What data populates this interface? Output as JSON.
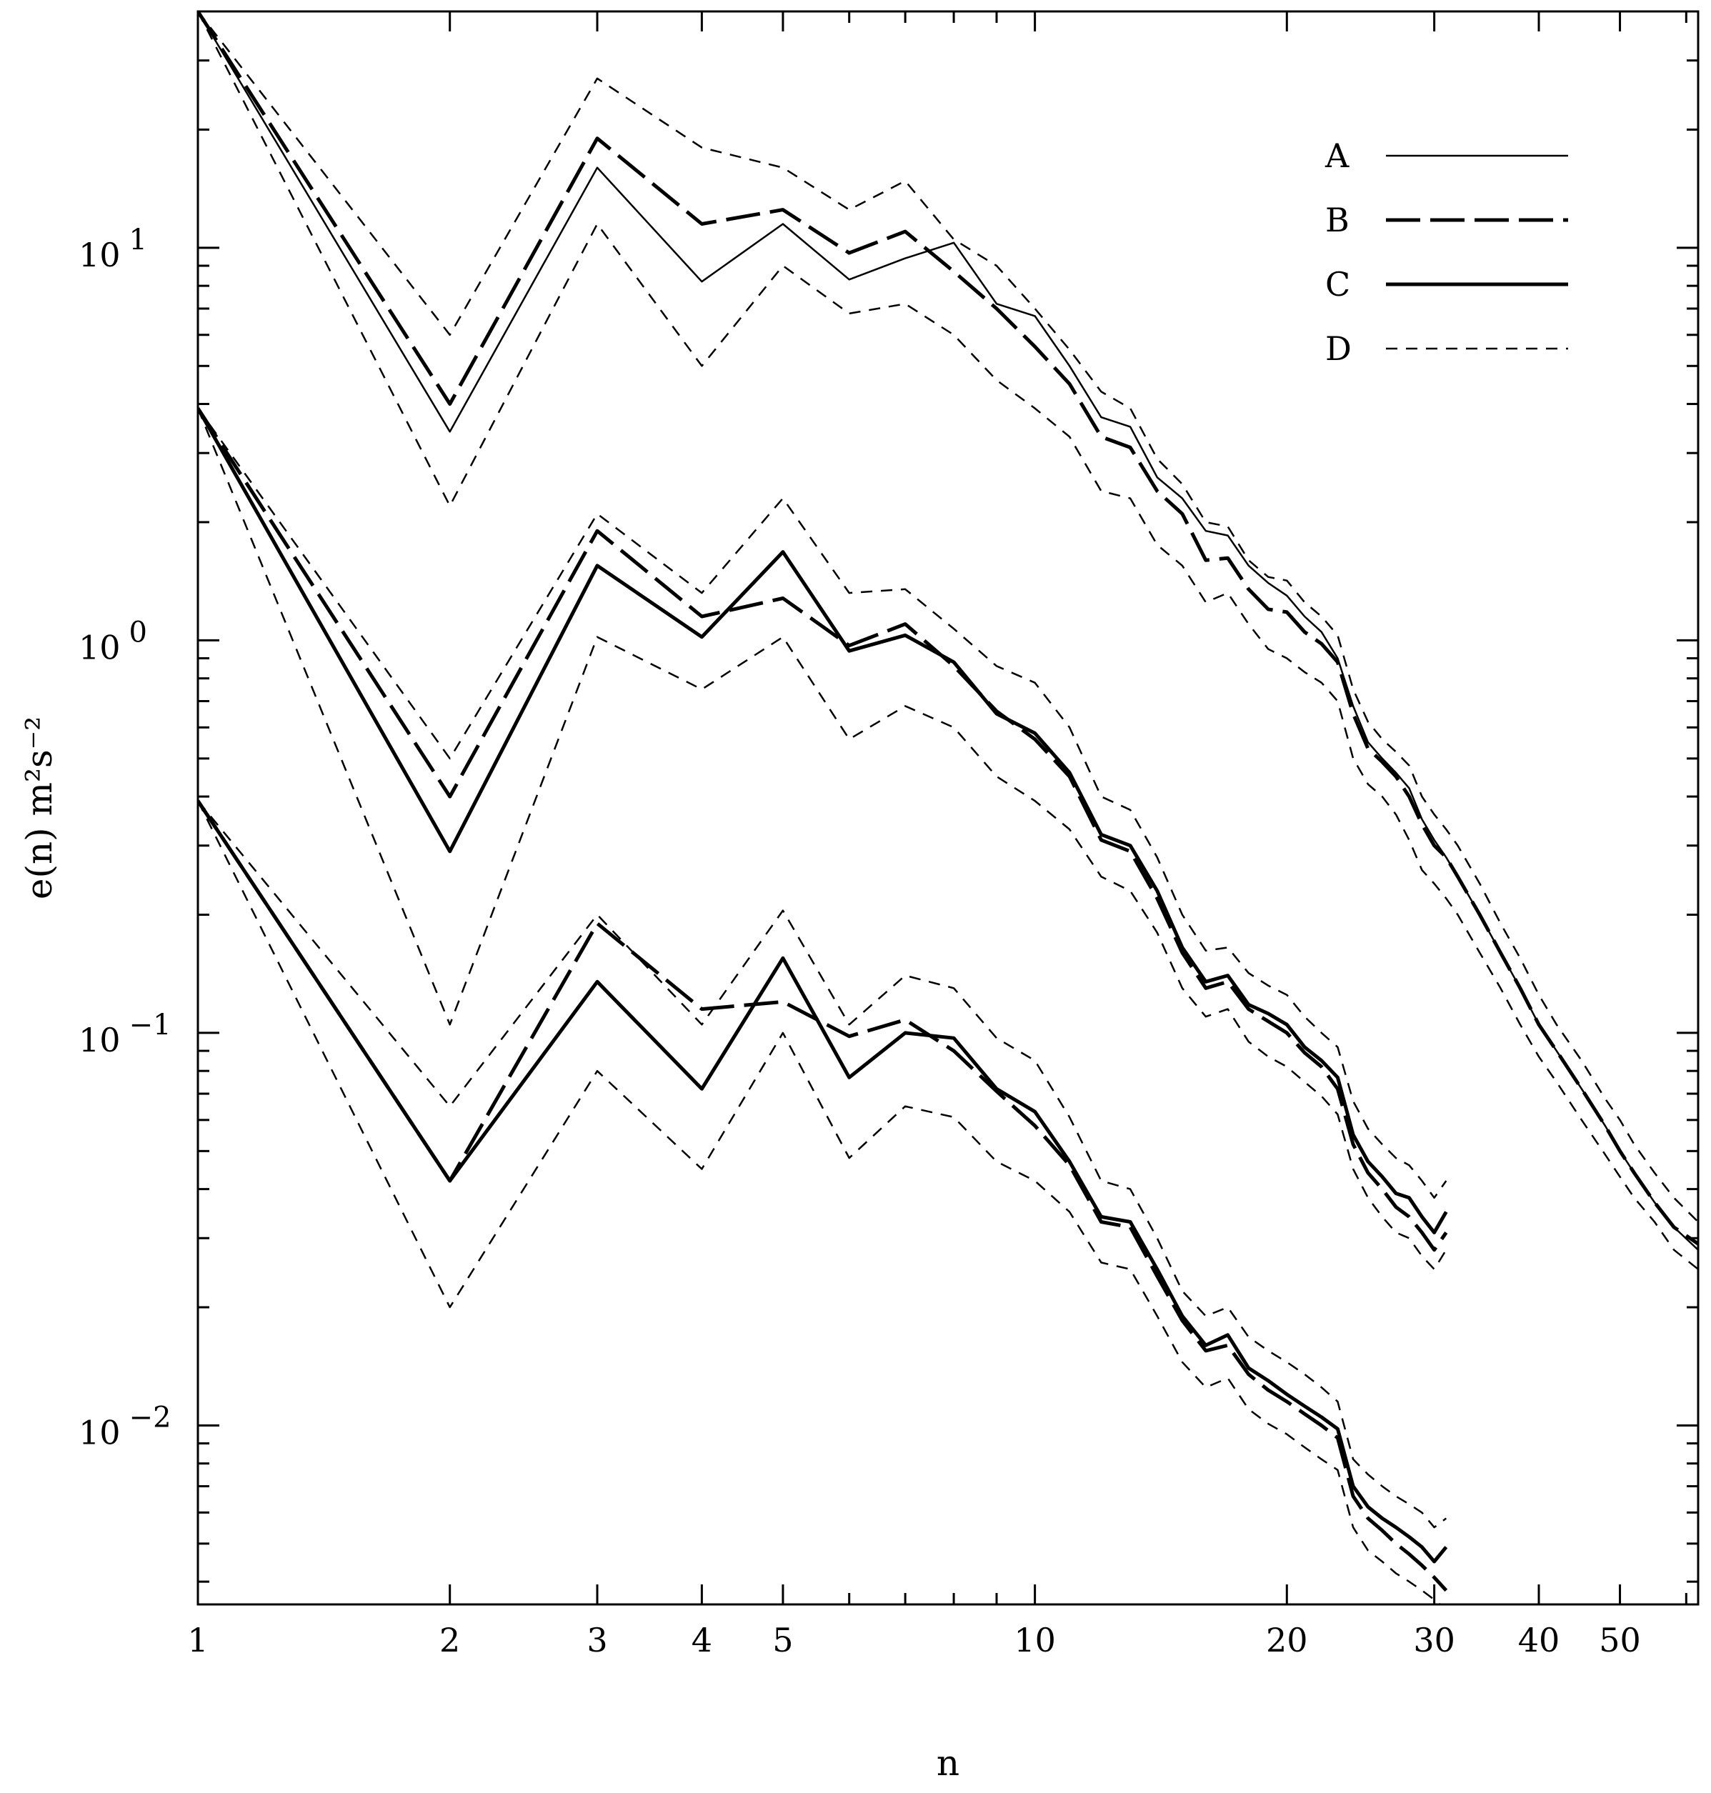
{
  "chart_data": {
    "type": "line",
    "title": "",
    "xlabel": "n",
    "ylabel": "e(n) m²s⁻²",
    "xscale": "log",
    "yscale": "log",
    "xlim": [
      1,
      62
    ],
    "ylim": [
      0.0035,
      40
    ],
    "grid": false,
    "legend_position": "top-right",
    "x_ticks": [
      {
        "value": 1,
        "label": "1"
      },
      {
        "value": 2,
        "label": "2"
      },
      {
        "value": 3,
        "label": "3"
      },
      {
        "value": 4,
        "label": "4"
      },
      {
        "value": 5,
        "label": "5"
      },
      {
        "value": 10,
        "label": "10"
      },
      {
        "value": 20,
        "label": "20"
      },
      {
        "value": 30,
        "label": "30"
      },
      {
        "value": 40,
        "label": "40"
      },
      {
        "value": 50,
        "label": "50"
      }
    ],
    "y_ticks": [
      {
        "value": 10,
        "base": "10",
        "exp": "1"
      },
      {
        "value": 1,
        "base": "10",
        "exp": "0"
      },
      {
        "value": 0.1,
        "base": "10",
        "exp": "−1"
      },
      {
        "value": 0.01,
        "base": "10",
        "exp": "−2"
      }
    ],
    "legend": [
      {
        "key": "A",
        "label": "A",
        "style": "thin-solid"
      },
      {
        "key": "B",
        "label": "B",
        "style": "long-dash"
      },
      {
        "key": "C",
        "label": "C",
        "style": "thick-solid"
      },
      {
        "key": "D",
        "label": "D",
        "style": "short-dash"
      }
    ],
    "series": [
      {
        "group": "upper",
        "style": "A",
        "x": [
          1,
          2,
          3,
          4,
          5,
          6,
          7,
          8,
          9,
          10,
          11,
          12,
          13,
          14,
          15,
          16,
          17,
          18,
          19,
          20,
          21,
          22,
          23,
          24,
          25,
          26,
          27,
          28,
          29,
          30,
          31,
          32,
          34,
          36,
          38,
          40,
          42,
          45,
          48,
          50,
          52,
          55,
          58,
          62
        ],
        "y": [
          40,
          3.4,
          16.0,
          8.2,
          11.5,
          8.3,
          9.4,
          10.3,
          7.2,
          6.7,
          5.0,
          3.7,
          3.5,
          2.6,
          2.3,
          1.9,
          1.85,
          1.55,
          1.4,
          1.3,
          1.15,
          1.05,
          0.9,
          0.68,
          0.55,
          0.5,
          0.46,
          0.42,
          0.35,
          0.31,
          0.28,
          0.25,
          0.2,
          0.16,
          0.13,
          0.105,
          0.09,
          0.072,
          0.058,
          0.05,
          0.044,
          0.037,
          0.032,
          0.028
        ]
      },
      {
        "group": "upper",
        "style": "B",
        "x": [
          1,
          2,
          3,
          4,
          5,
          6,
          7,
          8,
          9,
          10,
          11,
          12,
          13,
          14,
          15,
          16,
          17,
          18,
          19,
          20,
          21,
          22,
          23,
          24,
          25,
          26,
          27,
          28,
          29,
          30,
          31,
          32,
          34,
          36,
          38,
          40,
          42,
          45,
          48,
          50,
          52,
          55,
          58,
          62
        ],
        "y": [
          40,
          4.0,
          19.0,
          11.5,
          12.5,
          9.7,
          11.0,
          8.7,
          7.0,
          5.6,
          4.5,
          3.3,
          3.1,
          2.4,
          2.1,
          1.6,
          1.62,
          1.35,
          1.2,
          1.18,
          1.05,
          0.98,
          0.88,
          0.65,
          0.53,
          0.49,
          0.45,
          0.4,
          0.34,
          0.3,
          0.28,
          0.25,
          0.2,
          0.16,
          0.13,
          0.105,
          0.09,
          0.072,
          0.058,
          0.05,
          0.044,
          0.037,
          0.032,
          0.029
        ]
      },
      {
        "group": "upper",
        "style": "D-upper",
        "x": [
          1,
          2,
          3,
          4,
          5,
          6,
          7,
          8,
          9,
          10,
          11,
          12,
          13,
          14,
          15,
          16,
          17,
          18,
          19,
          20,
          21,
          22,
          23,
          24,
          25,
          26,
          27,
          28,
          29,
          30,
          31,
          32,
          34,
          36,
          38,
          40,
          42,
          45,
          48,
          50,
          52,
          55,
          58,
          62
        ],
        "y": [
          40,
          6.0,
          27.0,
          18.0,
          16.0,
          12.5,
          14.8,
          10.5,
          9.0,
          7.0,
          5.5,
          4.3,
          3.9,
          2.9,
          2.5,
          2.0,
          1.95,
          1.6,
          1.45,
          1.42,
          1.25,
          1.15,
          1.03,
          0.75,
          0.62,
          0.56,
          0.52,
          0.48,
          0.4,
          0.36,
          0.33,
          0.3,
          0.24,
          0.19,
          0.155,
          0.125,
          0.105,
          0.085,
          0.068,
          0.06,
          0.052,
          0.044,
          0.038,
          0.033
        ]
      },
      {
        "group": "upper",
        "style": "D-lower",
        "x": [
          1,
          2,
          3,
          4,
          5,
          6,
          7,
          8,
          9,
          10,
          11,
          12,
          13,
          14,
          15,
          16,
          17,
          18,
          19,
          20,
          21,
          22,
          23,
          24,
          25,
          26,
          27,
          28,
          29,
          30,
          31,
          32,
          34,
          36,
          38,
          40,
          42,
          45,
          48,
          50,
          52,
          55,
          58,
          62
        ],
        "y": [
          40,
          2.2,
          11.5,
          5.0,
          9.0,
          6.8,
          7.2,
          6.0,
          4.6,
          3.9,
          3.3,
          2.4,
          2.3,
          1.75,
          1.55,
          1.25,
          1.32,
          1.1,
          0.95,
          0.9,
          0.83,
          0.78,
          0.7,
          0.5,
          0.43,
          0.4,
          0.36,
          0.31,
          0.26,
          0.24,
          0.22,
          0.2,
          0.16,
          0.13,
          0.105,
          0.087,
          0.075,
          0.06,
          0.049,
          0.043,
          0.038,
          0.033,
          0.028,
          0.025
        ]
      },
      {
        "group": "middle",
        "style": "C",
        "x": [
          1,
          2,
          3,
          4,
          5,
          6,
          7,
          8,
          9,
          10,
          11,
          12,
          13,
          14,
          15,
          16,
          17,
          18,
          19,
          20,
          21,
          22,
          23,
          24,
          25,
          26,
          27,
          28,
          29,
          30,
          31
        ],
        "y": [
          3.9,
          0.29,
          1.55,
          1.02,
          1.68,
          0.94,
          1.03,
          0.88,
          0.65,
          0.58,
          0.46,
          0.32,
          0.3,
          0.23,
          0.165,
          0.135,
          0.14,
          0.118,
          0.112,
          0.105,
          0.092,
          0.085,
          0.077,
          0.055,
          0.047,
          0.043,
          0.039,
          0.038,
          0.034,
          0.031,
          0.035
        ]
      },
      {
        "group": "middle",
        "style": "B",
        "x": [
          1,
          2,
          3,
          4,
          5,
          6,
          7,
          8,
          9,
          10,
          11,
          12,
          13,
          14,
          15,
          16,
          17,
          18,
          19,
          20,
          21,
          22,
          23,
          24,
          25,
          26,
          27,
          28,
          29,
          30,
          31
        ],
        "y": [
          3.9,
          0.4,
          1.9,
          1.15,
          1.28,
          0.97,
          1.1,
          0.86,
          0.66,
          0.56,
          0.45,
          0.31,
          0.29,
          0.22,
          0.16,
          0.13,
          0.135,
          0.115,
          0.107,
          0.1,
          0.089,
          0.082,
          0.072,
          0.052,
          0.044,
          0.04,
          0.036,
          0.034,
          0.031,
          0.028,
          0.031
        ]
      },
      {
        "group": "middle",
        "style": "D-upper",
        "x": [
          1,
          2,
          3,
          4,
          5,
          6,
          7,
          8,
          9,
          10,
          11,
          12,
          13,
          14,
          15,
          16,
          17,
          18,
          19,
          20,
          21,
          22,
          23,
          24,
          25,
          26,
          27,
          28,
          29,
          30,
          31
        ],
        "y": [
          3.9,
          0.5,
          2.1,
          1.32,
          2.3,
          1.32,
          1.35,
          1.07,
          0.86,
          0.78,
          0.6,
          0.4,
          0.37,
          0.28,
          0.2,
          0.162,
          0.165,
          0.142,
          0.132,
          0.125,
          0.11,
          0.1,
          0.092,
          0.067,
          0.057,
          0.052,
          0.048,
          0.046,
          0.042,
          0.038,
          0.042
        ]
      },
      {
        "group": "middle",
        "style": "D-lower",
        "x": [
          1,
          2,
          3,
          4,
          5,
          6,
          7,
          8,
          9,
          10,
          11,
          12,
          13,
          14,
          15,
          16,
          17,
          18,
          19,
          20,
          21,
          22,
          23,
          24,
          25,
          26,
          27,
          28,
          29,
          30,
          31
        ],
        "y": [
          3.9,
          0.105,
          1.02,
          0.75,
          1.02,
          0.56,
          0.68,
          0.6,
          0.45,
          0.39,
          0.33,
          0.25,
          0.23,
          0.18,
          0.13,
          0.11,
          0.115,
          0.095,
          0.087,
          0.082,
          0.075,
          0.069,
          0.062,
          0.045,
          0.038,
          0.034,
          0.031,
          0.03,
          0.027,
          0.025,
          0.028
        ]
      },
      {
        "group": "lower",
        "style": "C",
        "x": [
          1,
          2,
          3,
          4,
          5,
          6,
          7,
          8,
          9,
          10,
          11,
          12,
          13,
          14,
          15,
          16,
          17,
          18,
          19,
          20,
          21,
          22,
          23,
          24,
          25,
          26,
          27,
          28,
          29,
          30,
          31
        ],
        "y": [
          0.39,
          0.042,
          0.135,
          0.072,
          0.155,
          0.077,
          0.1,
          0.097,
          0.072,
          0.063,
          0.047,
          0.034,
          0.033,
          0.025,
          0.019,
          0.016,
          0.017,
          0.014,
          0.013,
          0.012,
          0.0112,
          0.0105,
          0.0098,
          0.007,
          0.0062,
          0.0058,
          0.0055,
          0.0052,
          0.0049,
          0.0045,
          0.0049
        ]
      },
      {
        "group": "lower",
        "style": "B",
        "x": [
          1,
          2,
          3,
          4,
          5,
          6,
          7,
          8,
          9,
          10,
          11,
          12,
          13,
          14,
          15,
          16,
          17,
          18,
          19,
          20,
          21,
          22,
          23,
          24,
          25,
          26,
          27,
          28,
          29,
          30,
          31
        ],
        "y": [
          0.39,
          0.042,
          0.19,
          0.115,
          0.12,
          0.098,
          0.108,
          0.09,
          0.071,
          0.058,
          0.046,
          0.033,
          0.032,
          0.024,
          0.0185,
          0.0155,
          0.016,
          0.0135,
          0.0123,
          0.0115,
          0.0107,
          0.01,
          0.0093,
          0.0066,
          0.0058,
          0.0054,
          0.005,
          0.0047,
          0.0044,
          0.0041,
          0.0038
        ]
      },
      {
        "group": "lower",
        "style": "D-upper",
        "x": [
          1,
          2,
          3,
          4,
          5,
          6,
          7,
          8,
          9,
          10,
          11,
          12,
          13,
          14,
          15,
          16,
          17,
          18,
          19,
          20,
          21,
          22,
          23,
          24,
          25,
          26,
          27,
          28,
          29,
          30,
          31
        ],
        "y": [
          0.39,
          0.065,
          0.2,
          0.105,
          0.205,
          0.105,
          0.14,
          0.13,
          0.097,
          0.085,
          0.061,
          0.042,
          0.04,
          0.03,
          0.022,
          0.019,
          0.02,
          0.0168,
          0.0155,
          0.0145,
          0.0135,
          0.0125,
          0.0115,
          0.0082,
          0.0075,
          0.007,
          0.0066,
          0.0063,
          0.006,
          0.0055,
          0.0058
        ]
      },
      {
        "group": "lower",
        "style": "D-lower",
        "x": [
          1,
          2,
          3,
          4,
          5,
          6,
          7,
          8,
          9,
          10,
          11,
          12,
          13,
          14,
          15,
          16,
          17,
          18,
          19,
          20,
          21,
          22,
          23,
          24,
          25,
          26,
          27,
          28,
          29,
          30,
          31
        ],
        "y": [
          0.39,
          0.02,
          0.08,
          0.045,
          0.1,
          0.048,
          0.065,
          0.061,
          0.047,
          0.042,
          0.035,
          0.026,
          0.025,
          0.019,
          0.0145,
          0.0125,
          0.0132,
          0.011,
          0.0101,
          0.0095,
          0.0088,
          0.0082,
          0.0077,
          0.0055,
          0.0048,
          0.0045,
          0.0042,
          0.004,
          0.0038,
          0.0036,
          0.0034
        ]
      }
    ]
  }
}
